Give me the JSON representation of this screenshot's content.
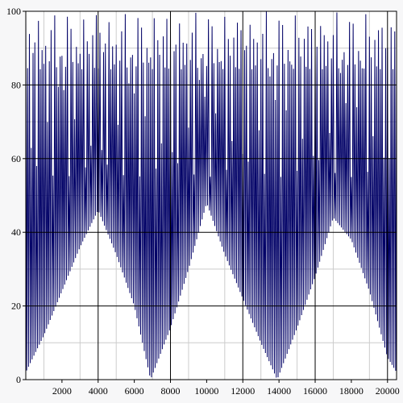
{
  "chart_data": {
    "type": "line",
    "title": "",
    "xlabel": "",
    "ylabel": "",
    "xlim": [
      0,
      20500
    ],
    "ylim": [
      0,
      100
    ],
    "x_ticks": [
      2000,
      4000,
      6000,
      8000,
      10000,
      12000,
      14000,
      16000,
      18000,
      20000
    ],
    "x_tick_labels": [
      "2000",
      "4000",
      "6000",
      "8000",
      "10000",
      "12000",
      "14000",
      "16000",
      "18000",
      "20000"
    ],
    "y_ticks": [
      0,
      20,
      40,
      60,
      80,
      100
    ],
    "y_tick_labels": [
      "0",
      "20",
      "40",
      "60",
      "80",
      "100"
    ],
    "grid": true,
    "legend": "none",
    "series": [
      {
        "color": "#000066",
        "note_values": "Dense oscillation between a floor and 100; floor traced by envelope points below.",
        "lower_envelope": {
          "x": [
            0,
            1000,
            2000,
            3000,
            4000,
            5000,
            6000,
            6900,
            8000,
            9000,
            10000,
            11000,
            12000,
            13000,
            13900,
            15000,
            16000,
            17000,
            18000,
            19000,
            20000,
            20500
          ],
          "y": [
            2,
            12,
            24,
            36,
            46,
            34,
            20,
            0,
            14,
            30,
            48,
            34,
            22,
            10,
            0,
            14,
            28,
            44,
            38,
            24,
            6,
            2
          ]
        },
        "upper_envelope": {
          "x": [
            0,
            20500
          ],
          "y": [
            100,
            100
          ]
        },
        "period": 100
      }
    ]
  },
  "colors": {
    "background": "#f7f7f8",
    "plot_background": "#ffffff",
    "line": "#000066",
    "grid_major": "#000000",
    "grid_minor": "#cccccc"
  }
}
